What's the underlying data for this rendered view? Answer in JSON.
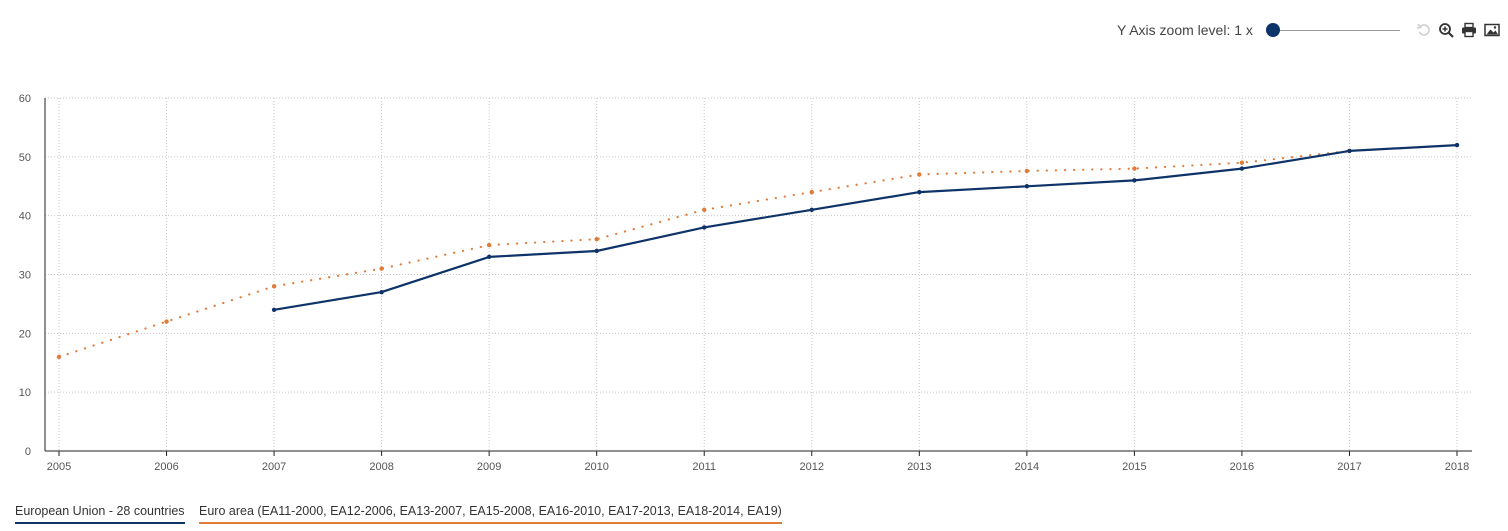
{
  "toolbar": {
    "zoom_label": "Y Axis zoom level: 1 x",
    "zoom_level": 1,
    "icons": [
      "reset-icon",
      "zoom-in-icon",
      "print-icon",
      "image-download-icon"
    ]
  },
  "colors": {
    "eu": "#0e3368",
    "ea": "#e07b39",
    "grid": "#c8c8c8",
    "axis": "#222222",
    "tick_text": "#555555"
  },
  "chart_data": {
    "type": "line",
    "title": "",
    "xlabel": "",
    "ylabel": "",
    "x": [
      "2005",
      "2006",
      "2007",
      "2008",
      "2009",
      "2010",
      "2011",
      "2012",
      "2013",
      "2014",
      "2015",
      "2016",
      "2017",
      "2018"
    ],
    "ylim": [
      0,
      60
    ],
    "yticks": [
      0,
      10,
      20,
      30,
      40,
      50,
      60
    ],
    "grid": true,
    "legend_position": "bottom-left",
    "series": [
      {
        "name": "European Union - 28 countries",
        "style": "solid",
        "values": [
          null,
          null,
          24,
          27,
          33,
          34,
          38,
          41,
          44,
          45,
          46,
          48,
          51,
          52
        ]
      },
      {
        "name": "Euro area (EA11-2000, EA12-2006, EA13-2007, EA15-2008, EA16-2010, EA17-2013, EA18-2014, EA19)",
        "style": "dotted",
        "values": [
          16,
          22,
          28,
          31,
          35,
          36,
          41,
          44,
          47,
          47.6,
          48,
          49,
          51,
          52
        ]
      }
    ]
  }
}
